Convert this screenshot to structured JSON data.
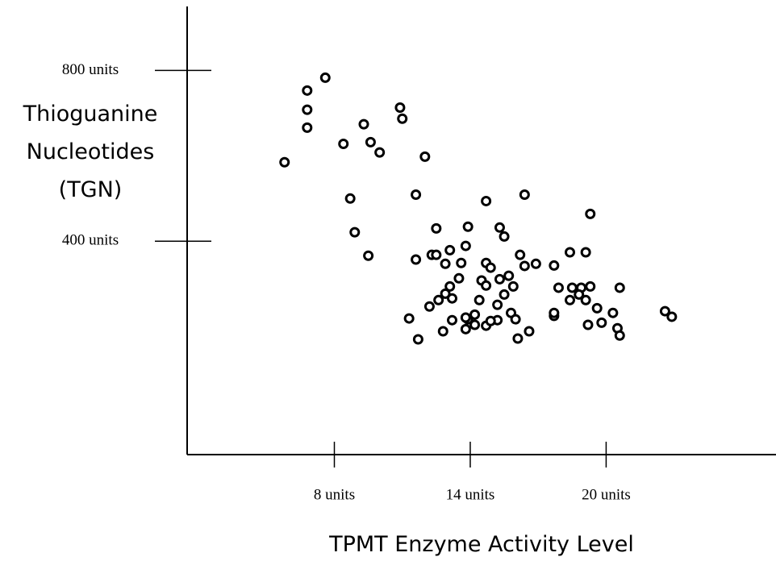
{
  "chart_data": {
    "type": "scatter",
    "xlabel": "TPMT Enzyme Activity Level",
    "ylabel": "Thioguanine Nucleotides (TGN)",
    "xlim": [
      1.5,
      27.5
    ],
    "ylim": [
      -100,
      950
    ],
    "xticks": [
      {
        "value": 8,
        "label": "8 units"
      },
      {
        "value": 14,
        "label": "14 units"
      },
      {
        "value": 20,
        "label": "20 units"
      }
    ],
    "yticks": [
      {
        "value": 400,
        "label": "400 units"
      },
      {
        "value": 800,
        "label": "800 units"
      }
    ],
    "color": "#000000",
    "x": [
      5.8,
      6.8,
      6.8,
      6.8,
      7.6,
      8.4,
      9.3,
      9.6,
      10.0,
      10.9,
      11.0,
      12.0,
      11.6,
      8.7,
      8.9,
      9.5,
      14.7,
      16.4,
      19.3,
      12.5,
      13.9,
      15.3,
      15.5,
      13.8,
      13.1,
      12.3,
      11.6,
      12.9,
      13.6,
      12.5,
      14.7,
      14.9,
      16.2,
      16.4,
      16.9,
      17.7,
      18.4,
      19.1,
      13.5,
      13.1,
      12.9,
      14.5,
      15.3,
      15.7,
      15.9,
      14.7,
      12.6,
      12.2,
      13.2,
      14.4,
      15.2,
      15.5,
      17.9,
      18.5,
      18.9,
      19.3,
      20.6,
      18.4,
      19.1,
      18.8,
      19.6,
      11.3,
      12.8,
      13.2,
      13.8,
      13.9,
      14.2,
      14.2,
      14.7,
      15.2,
      15.8,
      16.0,
      16.1,
      16.6,
      17.7,
      17.7,
      19.2,
      19.8,
      20.3,
      20.5,
      20.6,
      22.6,
      22.9,
      11.7,
      13.8,
      14.9
    ],
    "values": [
      585,
      753,
      708,
      666,
      783,
      628,
      674,
      632,
      608,
      713,
      687,
      598,
      509,
      500,
      421,
      366,
      494,
      509,
      464,
      430,
      434,
      432,
      411,
      389,
      379,
      368,
      357,
      347,
      349,
      368,
      349,
      338,
      368,
      342,
      347,
      343,
      374,
      374,
      313,
      294,
      277,
      308,
      311,
      319,
      294,
      296,
      262,
      247,
      266,
      262,
      251,
      275,
      291,
      291,
      291,
      294,
      291,
      262,
      262,
      275,
      243,
      219,
      189,
      215,
      194,
      217,
      228,
      204,
      202,
      215,
      232,
      217,
      172,
      189,
      225,
      232,
      204,
      209,
      232,
      196,
      179,
      236,
      223,
      170,
      221,
      213
    ]
  }
}
